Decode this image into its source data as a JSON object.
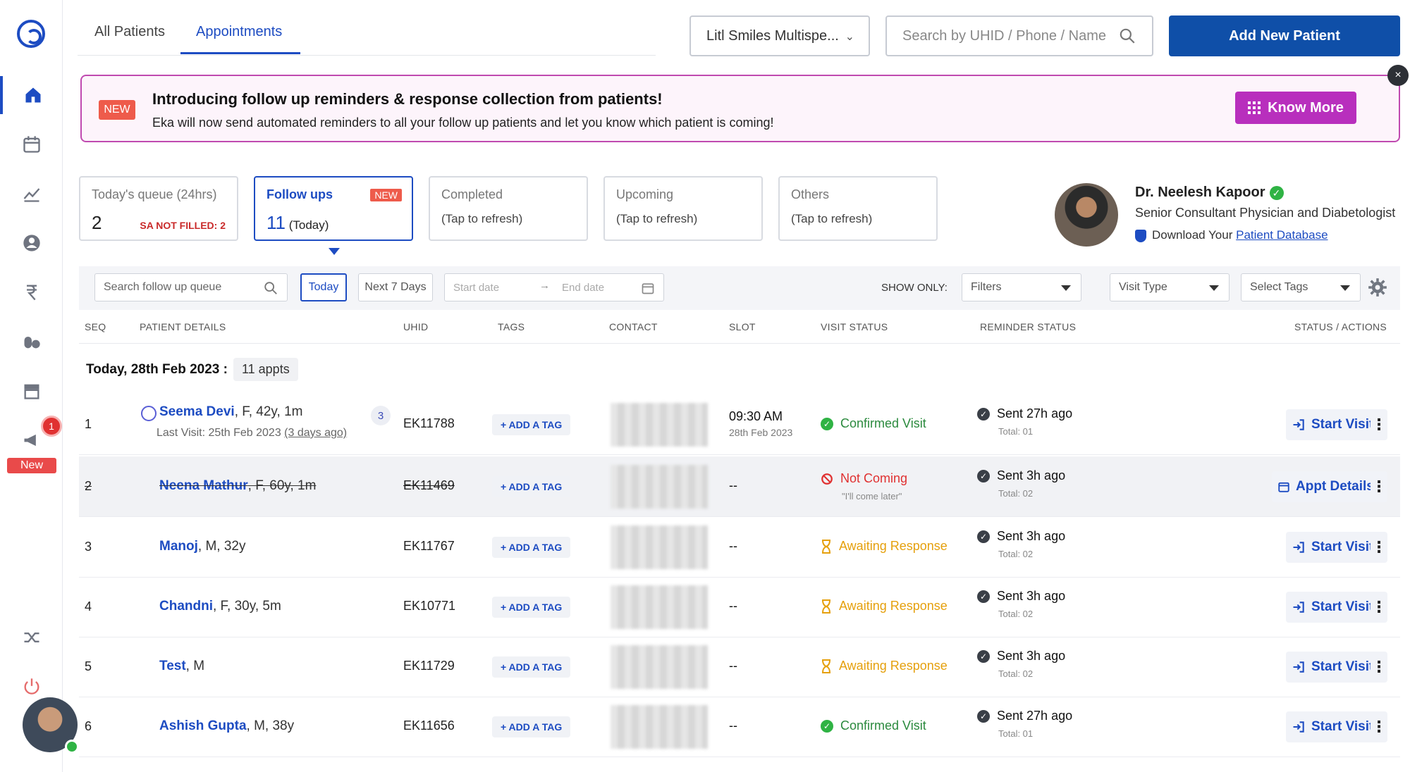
{
  "sidebar": {
    "notification_count": "1",
    "new_label": "New",
    "icons": [
      "home-icon",
      "calendar-icon",
      "analytics-icon",
      "user-icon",
      "rupee-icon",
      "pills-icon",
      "inventory-icon",
      "megaphone-icon",
      "shuffle-icon",
      "power-icon"
    ]
  },
  "tabs": [
    {
      "label": "All Patients",
      "active": false
    },
    {
      "label": "Appointments",
      "active": true
    }
  ],
  "header": {
    "clinic_select": "Litl Smiles Multispe...",
    "search_placeholder": "Search by UHID / Phone / Name",
    "add_button": "Add New Patient"
  },
  "banner": {
    "badge": "NEW",
    "title": "Introducing follow up reminders & response collection from patients!",
    "subtitle": "Eka will now send automated reminders to all your follow up patients and let you know which patient is coming!",
    "button": "Know More",
    "close": "×"
  },
  "cards": [
    {
      "title": "Today's queue (24hrs)",
      "value": "2",
      "note": "SA NOT FILLED: 2"
    },
    {
      "title": "Follow ups",
      "badge": "NEW",
      "value": "11",
      "value_suffix": "(Today)"
    },
    {
      "title": "Completed",
      "value": "(Tap to refresh)"
    },
    {
      "title": "Upcoming",
      "value": "(Tap to refresh)"
    },
    {
      "title": "Others",
      "value": "(Tap to refresh)"
    }
  ],
  "doctor": {
    "name": "Dr. Neelesh Kapoor",
    "title": "Senior Consultant Physician and Diabetologist",
    "download_prefix": "Download Your",
    "download_link": "Patient Database"
  },
  "filters": {
    "search_placeholder": "Search follow up queue",
    "today": "Today",
    "next7": "Next 7 Days",
    "start_date": "Start date",
    "end_date": "End date",
    "show_only": "SHOW ONLY:",
    "filters": "Filters",
    "visit_type": "Visit Type",
    "select_tags": "Select Tags"
  },
  "table": {
    "headers": [
      "SEQ",
      "PATIENT DETAILS",
      "UHID",
      "TAGS",
      "CONTACT",
      "SLOT",
      "VISIT STATUS",
      "REMINDER STATUS",
      "STATUS / ACTIONS"
    ],
    "group_label": "Today, 28th Feb 2023 :",
    "group_count": "11 appts",
    "tag_label": "+ ADD A TAG",
    "rows": [
      {
        "seq": "1",
        "name": "Seema Devi",
        "info": ", F, 42y, 1m",
        "last_visit": "Last Visit: 25th Feb 2023",
        "last_ago": "(3 days ago)",
        "count": "3",
        "uhid": "EK11788",
        "slot": "09:30 AM",
        "slot_date": "28th Feb 2023",
        "visit_status": "Confirmed Visit",
        "visit_type": "ok",
        "reminder": "Sent 27h ago",
        "total": "Total: 01",
        "action": "Start Visit"
      },
      {
        "seq": "2",
        "name": "Neena Mathur",
        "info": ", F, 60y, 1m",
        "uhid": "EK11469",
        "slot": "--",
        "visit_status": "Not Coming",
        "visit_sub": "\"I'll come later\"",
        "visit_type": "no",
        "reminder": "Sent 3h ago",
        "total": "Total: 02",
        "action": "Appt Details"
      },
      {
        "seq": "3",
        "name": "Manoj",
        "info": ", M, 32y",
        "uhid": "EK11767",
        "slot": "--",
        "visit_status": "Awaiting Response",
        "visit_type": "wait",
        "reminder": "Sent 3h ago",
        "total": "Total: 02",
        "action": "Start Visit"
      },
      {
        "seq": "4",
        "name": "Chandni",
        "info": ", F, 30y, 5m",
        "uhid": "EK10771",
        "slot": "--",
        "visit_status": "Awaiting Response",
        "visit_type": "wait",
        "reminder": "Sent 3h ago",
        "total": "Total: 02",
        "action": "Start Visit"
      },
      {
        "seq": "5",
        "name": "Test",
        "info": ", M",
        "uhid": "EK11729",
        "slot": "--",
        "visit_status": "Awaiting Response",
        "visit_type": "wait",
        "reminder": "Sent 3h ago",
        "total": "Total: 02",
        "action": "Start Visit"
      },
      {
        "seq": "6",
        "name": "Ashish Gupta",
        "info": ", M, 38y",
        "uhid": "EK11656",
        "slot": "--",
        "visit_status": "Confirmed Visit",
        "visit_type": "ok",
        "reminder": "Sent 27h ago",
        "total": "Total: 01",
        "action": "Start Visit"
      }
    ]
  },
  "colors": {
    "primary": "#1d4cc2",
    "brand_button": "#0f4fa8",
    "banner_accent": "#b82fbd",
    "confirmed": "#2b8a3e",
    "not_coming": "#e03131",
    "awaiting": "#e5a00d"
  }
}
